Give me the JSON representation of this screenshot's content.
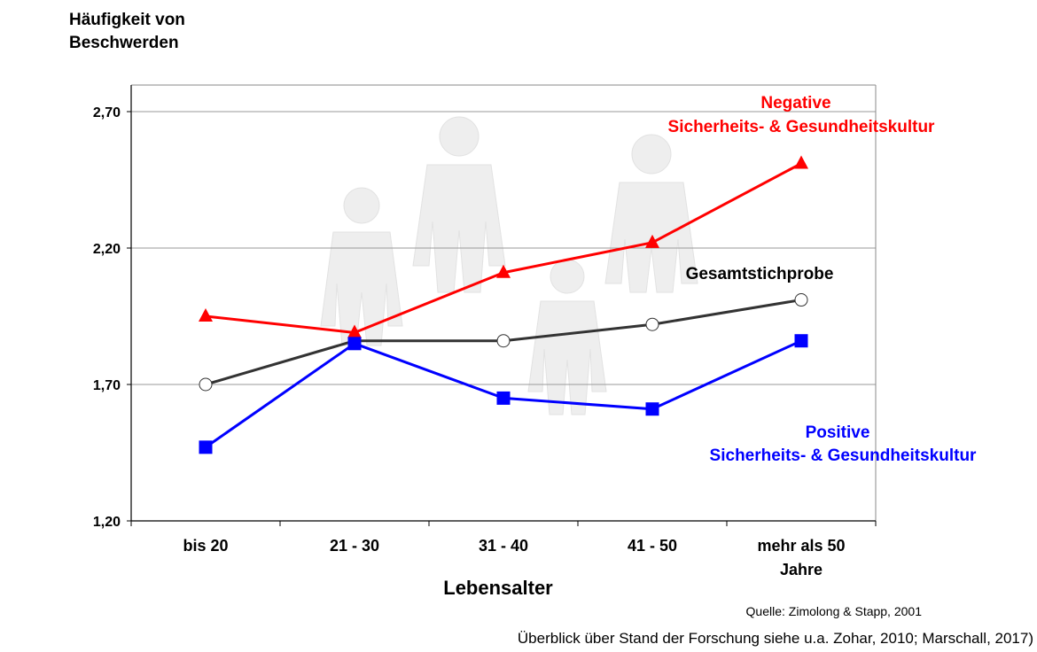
{
  "chart_data": {
    "type": "line",
    "ylabel_lines": [
      "Häufigkeit von",
      "Beschwerden"
    ],
    "xlabel": "Lebensalter",
    "categories": [
      [
        "bis 20"
      ],
      [
        "21 - 30"
      ],
      [
        "31 - 40"
      ],
      [
        "41 - 50"
      ],
      [
        "mehr als 50",
        "Jahre"
      ]
    ],
    "ylim": [
      1.2,
      2.8
    ],
    "yticks": [
      1.2,
      1.7,
      2.2,
      2.7
    ],
    "ytick_labels": [
      "1,20",
      "1,70",
      "2,20",
      "2,70"
    ],
    "grid": true,
    "series": [
      {
        "name": "Negative Sicherheits- & Gesundheitskultur",
        "label_lines": [
          "Negative",
          "Sicherheits- & Gesundheitskultur"
        ],
        "color": "#ff0000",
        "marker": "triangle",
        "values": [
          1.95,
          1.89,
          2.11,
          2.22,
          2.51
        ]
      },
      {
        "name": "Gesamtstichprobe",
        "label_lines": [
          "Gesamtstichprobe"
        ],
        "color": "#333333",
        "marker": "circle",
        "values": [
          1.7,
          1.86,
          1.86,
          1.92,
          2.01
        ]
      },
      {
        "name": "Positive Sicherheits- & Gesundheitskultur",
        "label_lines": [
          "Positive",
          "Sicherheits- & Gesundheitskultur"
        ],
        "color": "#0000ff",
        "marker": "square",
        "values": [
          1.47,
          1.85,
          1.65,
          1.61,
          1.86
        ]
      }
    ]
  },
  "source": "Quelle: Zimolong & Stapp, 2001",
  "reference": "Überblick über Stand der Forschung siehe u.a. Zohar, 2010; Marschall, 2017)"
}
